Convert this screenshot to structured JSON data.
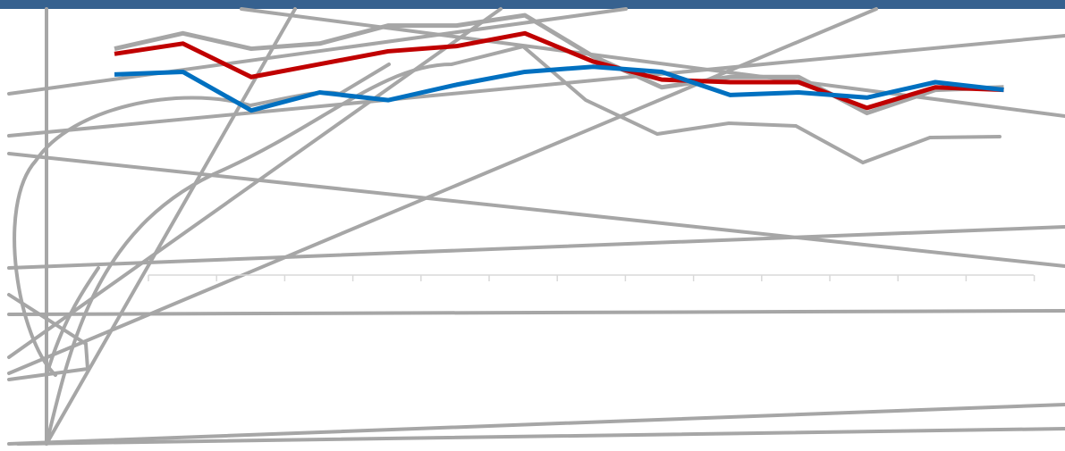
{
  "colors": {
    "header_band": "#36618f",
    "series_blue": "#0070c0",
    "series_red": "#c00000",
    "series_gray": "#a6a6a6",
    "axis": "#d9d9d9"
  },
  "chart_data": {
    "type": "line",
    "title": "",
    "xlabel": "",
    "ylabel": "",
    "x": [
      1,
      2,
      3,
      4,
      5,
      6,
      7,
      8,
      9,
      10,
      11,
      12,
      13,
      14
    ],
    "ylim": [
      0,
      100
    ],
    "grid": false,
    "legend": "none",
    "series": [
      {
        "color_key": "series_blue",
        "values": [
          78,
          79,
          64,
          71,
          68,
          74,
          79,
          81,
          79,
          70,
          71,
          69,
          75,
          72
        ]
      },
      {
        "color_key": "series_red",
        "values": [
          86,
          90,
          77,
          82,
          87,
          89,
          94,
          83,
          76,
          75,
          75,
          65,
          73,
          72
        ]
      },
      {
        "color_key": "series_gray",
        "values": [
          88,
          94,
          88,
          90,
          97,
          97,
          101,
          85,
          73,
          77,
          77,
          63,
          72,
          73
        ]
      }
    ]
  }
}
